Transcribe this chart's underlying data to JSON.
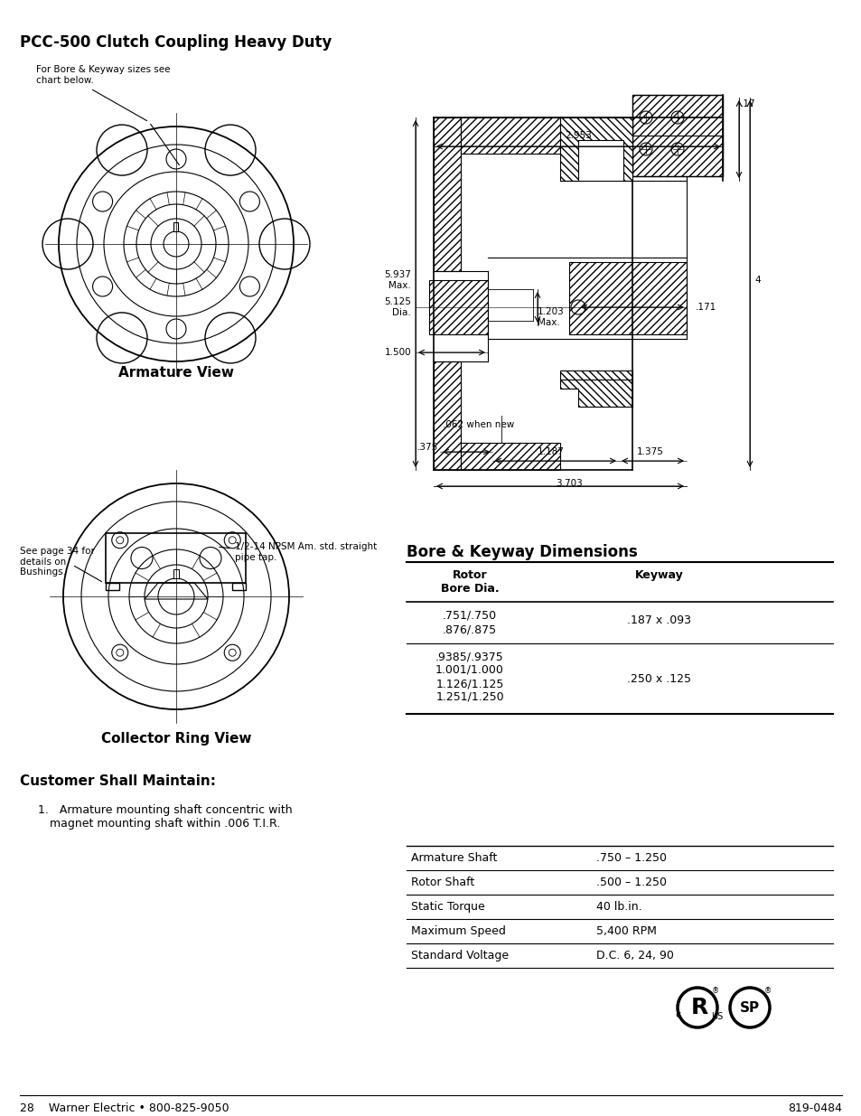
{
  "title": "PCC-500 Clutch Coupling Heavy Duty",
  "bg_color": "#ffffff",
  "text_color": "#000000",
  "page_footer_left": "28    Warner Electric • 800-825-9050",
  "page_footer_right": "819-0484",
  "armature_view_label": "Armature View",
  "collector_ring_label": "Collector Ring View",
  "annotation_bore_keyway": "For Bore & Keyway sizes see\nchart below.",
  "annotation_bushings": "See page 34 for\ndetails on\nBushings.",
  "annotation_pipe_tap": "1/2-14 NPSM Am. std. straight\npipe tap.",
  "customer_shall_title": "Customer Shall Maintain:",
  "customer_item1": "Armature mounting shaft concentric with\nmagnet mounting shaft within .006 T.I.R.",
  "bore_keyway_title": "Bore & Keyway Dimensions",
  "specs": [
    [
      "Armature Shaft",
      ".750 – 1.250"
    ],
    [
      "Rotor Shaft",
      ".500 – 1.250"
    ],
    [
      "Static Torque",
      "40 lb.in."
    ],
    [
      "Maximum Speed",
      "5,400 RPM"
    ],
    [
      "Standard Voltage",
      "D.C. 6, 24, 90"
    ]
  ]
}
